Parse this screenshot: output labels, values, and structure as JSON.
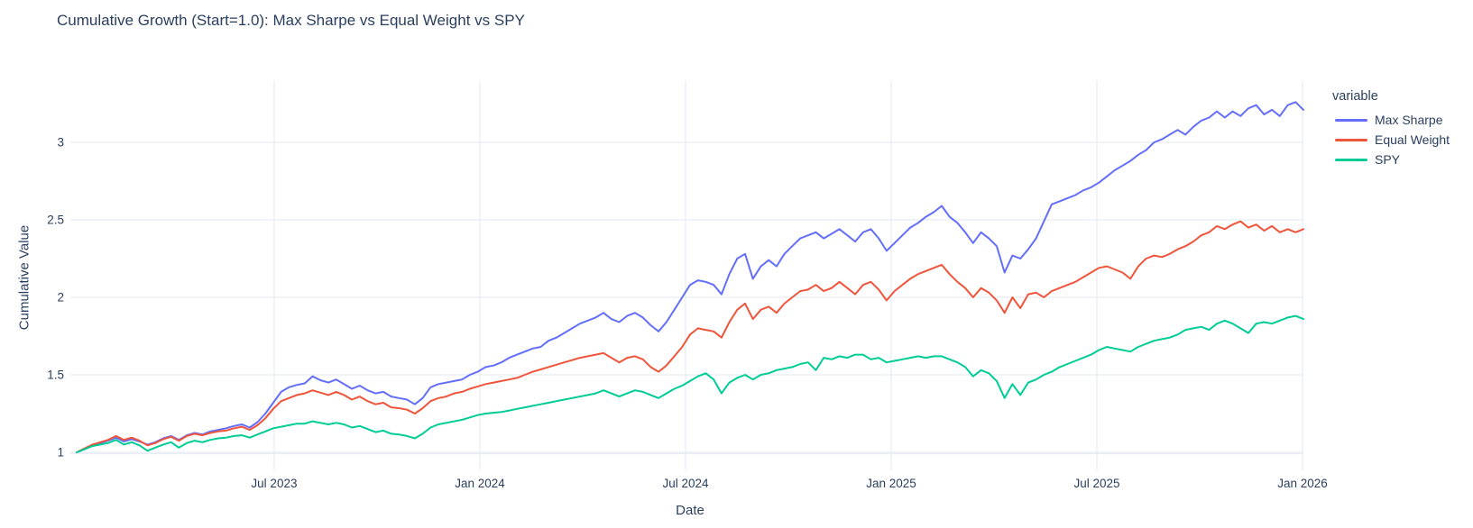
{
  "title": "Cumulative Growth (Start=1.0): Max Sharpe vs Equal Weight vs SPY",
  "colors": {
    "max_sharpe": "#636EFA",
    "equal_weight": "#EF553B",
    "spy": "#00CC96",
    "text": "#2a3f5f",
    "grid": "#E8EDF5",
    "background": "#ffffff"
  },
  "legend": {
    "title": "variable",
    "items": [
      {
        "label": "Max Sharpe",
        "color": "#636EFA"
      },
      {
        "label": "Equal Weight",
        "color": "#EF553B"
      },
      {
        "label": "SPY",
        "color": "#00CC96"
      }
    ]
  },
  "chart_data": {
    "type": "line",
    "title": "Cumulative Growth (Start=1.0): Max Sharpe vs Equal Weight vs SPY",
    "xlabel": "Date",
    "ylabel": "Cumulative Value",
    "x_range": [
      "Jan 2023",
      "Jan 2026"
    ],
    "ylim": [
      0.98,
      3.4
    ],
    "grid": true,
    "legend_position": "right",
    "y_ticks": [
      1,
      1.5,
      2,
      2.5,
      3
    ],
    "y_tick_labels": [
      "1",
      "1.5",
      "2",
      "2.5",
      "3"
    ],
    "x_ticks": [
      {
        "label": "Jul 2023",
        "t": 0.161
      },
      {
        "label": "Jan 2024",
        "t": 0.3287
      },
      {
        "label": "Jul 2024",
        "t": 0.4963
      },
      {
        "label": "Jan 2025",
        "t": 0.664
      },
      {
        "label": "Jul 2025",
        "t": 0.8316
      },
      {
        "label": "Jan 2026",
        "t": 0.9993
      }
    ],
    "x_unit": "weeks since Jan 2023 (index 0..156)",
    "series": [
      {
        "name": "Max Sharpe",
        "color": "#636EFA",
        "values": [
          1.0,
          1.02,
          1.045,
          1.06,
          1.075,
          1.095,
          1.07,
          1.085,
          1.07,
          1.05,
          1.065,
          1.09,
          1.105,
          1.08,
          1.11,
          1.125,
          1.115,
          1.135,
          1.145,
          1.155,
          1.17,
          1.18,
          1.16,
          1.195,
          1.25,
          1.32,
          1.39,
          1.42,
          1.435,
          1.445,
          1.49,
          1.465,
          1.45,
          1.47,
          1.44,
          1.41,
          1.43,
          1.4,
          1.38,
          1.39,
          1.36,
          1.35,
          1.34,
          1.31,
          1.35,
          1.42,
          1.44,
          1.45,
          1.46,
          1.47,
          1.5,
          1.52,
          1.55,
          1.56,
          1.58,
          1.61,
          1.63,
          1.65,
          1.67,
          1.68,
          1.72,
          1.74,
          1.77,
          1.8,
          1.83,
          1.85,
          1.87,
          1.9,
          1.86,
          1.84,
          1.88,
          1.9,
          1.87,
          1.82,
          1.78,
          1.84,
          1.92,
          2.0,
          2.08,
          2.11,
          2.1,
          2.08,
          2.02,
          2.15,
          2.25,
          2.28,
          2.12,
          2.2,
          2.24,
          2.2,
          2.28,
          2.33,
          2.38,
          2.4,
          2.42,
          2.38,
          2.41,
          2.44,
          2.4,
          2.36,
          2.42,
          2.44,
          2.38,
          2.3,
          2.35,
          2.4,
          2.45,
          2.48,
          2.52,
          2.55,
          2.59,
          2.52,
          2.48,
          2.42,
          2.35,
          2.42,
          2.38,
          2.33,
          2.16,
          2.27,
          2.25,
          2.31,
          2.38,
          2.49,
          2.6,
          2.62,
          2.64,
          2.66,
          2.69,
          2.71,
          2.74,
          2.78,
          2.82,
          2.85,
          2.88,
          2.92,
          2.95,
          3.0,
          3.02,
          3.05,
          3.08,
          3.05,
          3.1,
          3.14,
          3.16,
          3.2,
          3.16,
          3.2,
          3.17,
          3.22,
          3.24,
          3.18,
          3.21,
          3.17,
          3.24,
          3.26,
          3.21
        ]
      },
      {
        "name": "Equal Weight",
        "color": "#EF553B",
        "values": [
          1.0,
          1.025,
          1.05,
          1.065,
          1.08,
          1.105,
          1.08,
          1.095,
          1.075,
          1.045,
          1.06,
          1.085,
          1.1,
          1.075,
          1.105,
          1.12,
          1.11,
          1.125,
          1.135,
          1.14,
          1.155,
          1.165,
          1.145,
          1.175,
          1.22,
          1.28,
          1.33,
          1.35,
          1.37,
          1.38,
          1.4,
          1.385,
          1.37,
          1.39,
          1.37,
          1.34,
          1.36,
          1.33,
          1.31,
          1.32,
          1.29,
          1.285,
          1.275,
          1.25,
          1.285,
          1.33,
          1.35,
          1.36,
          1.38,
          1.39,
          1.41,
          1.425,
          1.44,
          1.45,
          1.46,
          1.47,
          1.48,
          1.5,
          1.52,
          1.535,
          1.55,
          1.565,
          1.58,
          1.595,
          1.61,
          1.62,
          1.63,
          1.64,
          1.61,
          1.58,
          1.61,
          1.62,
          1.6,
          1.55,
          1.52,
          1.56,
          1.62,
          1.68,
          1.76,
          1.8,
          1.79,
          1.78,
          1.74,
          1.84,
          1.92,
          1.96,
          1.86,
          1.92,
          1.94,
          1.9,
          1.96,
          2.0,
          2.04,
          2.05,
          2.08,
          2.04,
          2.06,
          2.1,
          2.06,
          2.02,
          2.08,
          2.1,
          2.05,
          1.98,
          2.04,
          2.08,
          2.12,
          2.15,
          2.17,
          2.19,
          2.21,
          2.15,
          2.1,
          2.06,
          2.0,
          2.06,
          2.03,
          1.98,
          1.9,
          2.0,
          1.93,
          2.02,
          2.03,
          2.0,
          2.04,
          2.06,
          2.08,
          2.1,
          2.13,
          2.16,
          2.19,
          2.2,
          2.18,
          2.16,
          2.12,
          2.2,
          2.25,
          2.27,
          2.26,
          2.28,
          2.31,
          2.33,
          2.36,
          2.4,
          2.42,
          2.46,
          2.44,
          2.47,
          2.49,
          2.45,
          2.47,
          2.43,
          2.46,
          2.42,
          2.44,
          2.42,
          2.44
        ]
      },
      {
        "name": "SPY",
        "color": "#00CC96",
        "values": [
          1.0,
          1.02,
          1.04,
          1.05,
          1.06,
          1.08,
          1.05,
          1.065,
          1.045,
          1.01,
          1.03,
          1.05,
          1.065,
          1.03,
          1.06,
          1.075,
          1.065,
          1.08,
          1.09,
          1.095,
          1.105,
          1.11,
          1.095,
          1.115,
          1.135,
          1.155,
          1.165,
          1.175,
          1.185,
          1.185,
          1.2,
          1.19,
          1.18,
          1.19,
          1.18,
          1.16,
          1.17,
          1.15,
          1.13,
          1.14,
          1.12,
          1.115,
          1.105,
          1.09,
          1.12,
          1.16,
          1.18,
          1.19,
          1.2,
          1.21,
          1.225,
          1.24,
          1.25,
          1.255,
          1.26,
          1.27,
          1.28,
          1.29,
          1.3,
          1.31,
          1.32,
          1.33,
          1.34,
          1.35,
          1.36,
          1.37,
          1.38,
          1.4,
          1.38,
          1.36,
          1.38,
          1.4,
          1.39,
          1.37,
          1.35,
          1.38,
          1.41,
          1.43,
          1.46,
          1.49,
          1.51,
          1.47,
          1.38,
          1.45,
          1.48,
          1.5,
          1.47,
          1.5,
          1.51,
          1.53,
          1.54,
          1.55,
          1.57,
          1.58,
          1.53,
          1.61,
          1.6,
          1.62,
          1.61,
          1.63,
          1.63,
          1.6,
          1.61,
          1.58,
          1.59,
          1.6,
          1.61,
          1.62,
          1.61,
          1.62,
          1.62,
          1.6,
          1.58,
          1.55,
          1.49,
          1.53,
          1.51,
          1.46,
          1.35,
          1.44,
          1.37,
          1.45,
          1.47,
          1.5,
          1.52,
          1.55,
          1.57,
          1.59,
          1.61,
          1.63,
          1.66,
          1.68,
          1.67,
          1.66,
          1.65,
          1.68,
          1.7,
          1.72,
          1.73,
          1.74,
          1.76,
          1.79,
          1.8,
          1.81,
          1.79,
          1.83,
          1.85,
          1.83,
          1.8,
          1.77,
          1.83,
          1.84,
          1.83,
          1.85,
          1.87,
          1.88,
          1.86
        ]
      }
    ]
  }
}
